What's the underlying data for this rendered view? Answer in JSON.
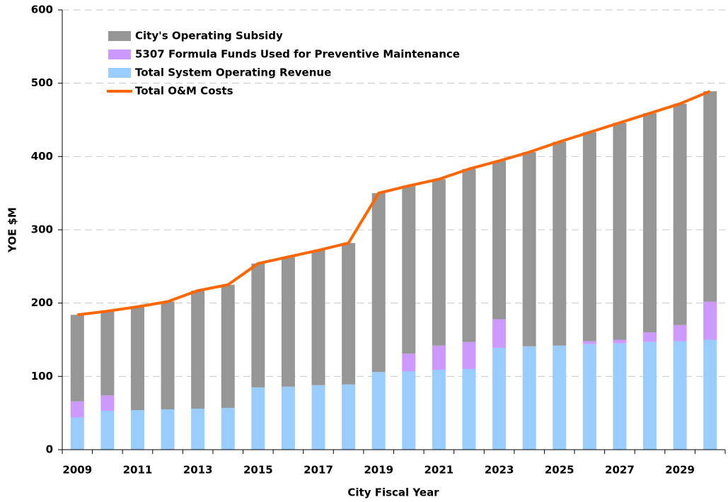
{
  "chart_data": {
    "type": "bar",
    "stacked": true,
    "xlabel": "City Fiscal Year",
    "ylabel": "YOE $M",
    "categories": [
      "2009",
      null,
      "2011",
      null,
      "2013",
      null,
      "2015",
      null,
      "2017",
      null,
      "2019",
      null,
      "2021",
      null,
      "2023",
      null,
      "2025",
      null,
      "2027",
      null,
      "2029",
      null
    ],
    "series": [
      {
        "name": "City's Operating Subsidy",
        "type": "bar",
        "color": "#969696",
        "values": [
          118,
          115,
          141,
          147,
          161,
          168,
          169,
          177,
          184,
          193,
          244,
          229,
          227,
          236,
          216,
          265,
          278,
          285,
          296,
          299,
          302,
          287
        ]
      },
      {
        "name": "5307 Formula Funds Used for Preventive Maintenance",
        "type": "bar",
        "color": "#cc99ff",
        "values": [
          22,
          21,
          0,
          0,
          0,
          0,
          0,
          0,
          0,
          0,
          0,
          24,
          33,
          37,
          39,
          0,
          0,
          4,
          5,
          13,
          22,
          52
        ]
      },
      {
        "name": "Total System Operating Revenue",
        "type": "bar",
        "color": "#99ccff",
        "values": [
          44,
          53,
          54,
          55,
          56,
          57,
          85,
          86,
          88,
          89,
          106,
          107,
          109,
          110,
          139,
          141,
          142,
          144,
          145,
          147,
          148,
          150
        ]
      },
      {
        "name": "Total O&M Costs",
        "type": "line",
        "color": "#ff6600",
        "values": [
          184,
          189,
          195,
          202,
          217,
          225,
          254,
          263,
          272,
          282,
          350,
          360,
          369,
          383,
          394,
          406,
          420,
          433,
          446,
          459,
          472,
          489
        ]
      }
    ],
    "ylim": [
      0,
      600
    ],
    "yticks": [
      0,
      100,
      200,
      300,
      400,
      500,
      600
    ],
    "grid": true,
    "legend": "upper left"
  }
}
